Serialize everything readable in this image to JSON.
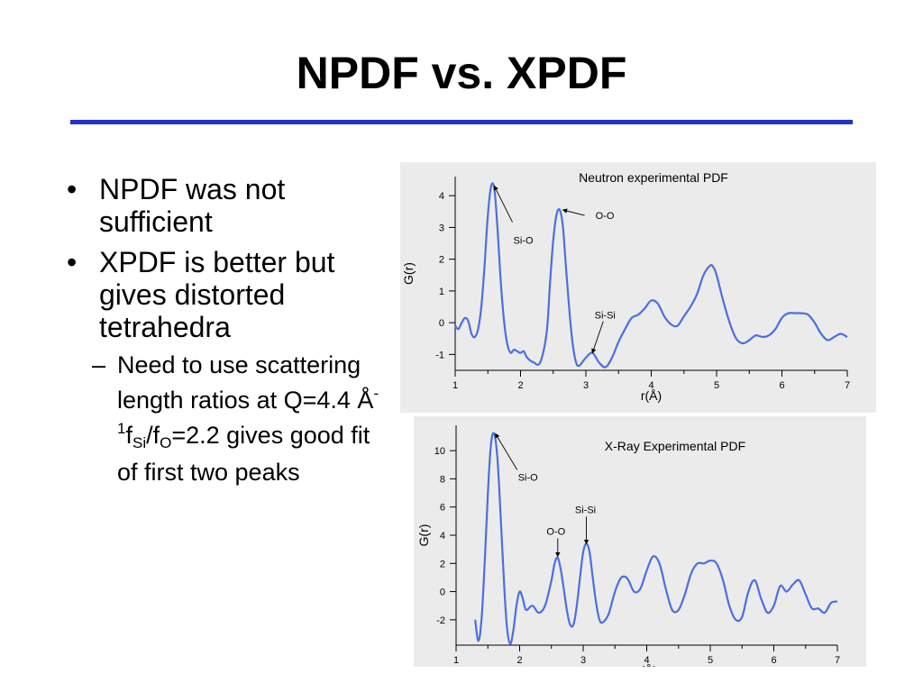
{
  "slide": {
    "title": "NPDF vs. XPDF",
    "bullets": [
      {
        "text": "NPDF was not sufficient"
      },
      {
        "text": "XPDF is better but gives distorted tetrahedra"
      }
    ],
    "sub_bullet": {
      "part1": "Need to use scattering length ratios at Q=4.4 Å",
      "sup_minus": "-",
      "sup_one": "1",
      "f1": "f",
      "sub_si": "Si",
      "slash_f": "/f",
      "sub_o": "O",
      "part2": "=2.2 gives good fit of first two peaks"
    }
  },
  "accent_color": "#2233cc",
  "chart_data": [
    {
      "type": "line",
      "title": "Neutron experimental PDF",
      "xlabel": "r(Å)",
      "ylabel": "G(r)",
      "xlim": [
        1,
        7
      ],
      "ylim": [
        -1.5,
        4.6
      ],
      "xticks": [
        1,
        2,
        3,
        4,
        5,
        6,
        7
      ],
      "yticks": [
        -1,
        0,
        1,
        2,
        3,
        4
      ],
      "color": "#4a6fe0",
      "grid": false,
      "series": [
        {
          "x": [
            1.0,
            1.05,
            1.1,
            1.15,
            1.2,
            1.25,
            1.3,
            1.35,
            1.4,
            1.45,
            1.5,
            1.55,
            1.6,
            1.65,
            1.7,
            1.75,
            1.8,
            1.85,
            1.9,
            1.95,
            2.0,
            2.05,
            2.1,
            2.2,
            2.3,
            2.4,
            2.45,
            2.5,
            2.55,
            2.6,
            2.65,
            2.7,
            2.75,
            2.8,
            2.85,
            2.9,
            3.0,
            3.1,
            3.2,
            3.3,
            3.4,
            3.5,
            3.6,
            3.7,
            3.8,
            3.9,
            4.0,
            4.1,
            4.2,
            4.3,
            4.4,
            4.5,
            4.6,
            4.7,
            4.8,
            4.9,
            4.95,
            5.0,
            5.1,
            5.2,
            5.3,
            5.4,
            5.5,
            5.6,
            5.7,
            5.8,
            5.9,
            6.0,
            6.1,
            6.2,
            6.3,
            6.4,
            6.5,
            6.6,
            6.7,
            6.8,
            6.9,
            7.0
          ],
          "y": [
            -0.1,
            -0.2,
            0.0,
            0.15,
            0.05,
            -0.35,
            -0.45,
            -0.2,
            0.5,
            1.8,
            3.4,
            4.3,
            4.2,
            2.9,
            1.2,
            0.0,
            -0.7,
            -0.95,
            -0.85,
            -0.9,
            -0.95,
            -0.9,
            -1.1,
            -1.25,
            -1.25,
            -0.3,
            1.2,
            2.6,
            3.4,
            3.55,
            3.0,
            1.6,
            0.3,
            -0.7,
            -1.25,
            -1.35,
            -1.1,
            -0.95,
            -1.25,
            -1.4,
            -1.1,
            -0.6,
            -0.2,
            0.15,
            0.25,
            0.45,
            0.7,
            0.6,
            0.2,
            -0.05,
            -0.1,
            0.2,
            0.5,
            0.9,
            1.5,
            1.8,
            1.75,
            1.5,
            0.7,
            0.0,
            -0.5,
            -0.65,
            -0.55,
            -0.4,
            -0.45,
            -0.4,
            -0.2,
            0.15,
            0.3,
            0.3,
            0.3,
            0.25,
            0.0,
            -0.35,
            -0.55,
            -0.45,
            -0.35,
            -0.45
          ]
        }
      ],
      "annotations": [
        {
          "text": "Si-O",
          "x": 1.6,
          "y": 4.3
        },
        {
          "text": "O-O",
          "x": 2.65,
          "y": 3.55
        },
        {
          "text": "Si-Si",
          "x": 3.1,
          "y": -0.95
        }
      ]
    },
    {
      "type": "line",
      "title": "X-Ray Experimental PDF",
      "xlabel": "r(Å)",
      "ylabel": "G(r)",
      "xlim": [
        1,
        7
      ],
      "ylim": [
        -3.8,
        11.8
      ],
      "xticks": [
        1,
        2,
        3,
        4,
        5,
        6,
        7
      ],
      "yticks": [
        -2,
        0,
        2,
        4,
        6,
        8,
        10
      ],
      "color": "#4a6fe0",
      "grid": false,
      "series": [
        {
          "x": [
            1.3,
            1.35,
            1.4,
            1.45,
            1.5,
            1.55,
            1.6,
            1.65,
            1.7,
            1.75,
            1.8,
            1.85,
            1.9,
            1.95,
            2.0,
            2.05,
            2.1,
            2.2,
            2.3,
            2.4,
            2.5,
            2.55,
            2.6,
            2.65,
            2.7,
            2.75,
            2.8,
            2.85,
            2.9,
            2.95,
            3.0,
            3.05,
            3.1,
            3.15,
            3.2,
            3.25,
            3.3,
            3.4,
            3.5,
            3.6,
            3.7,
            3.8,
            3.9,
            4.0,
            4.1,
            4.2,
            4.3,
            4.4,
            4.5,
            4.6,
            4.7,
            4.8,
            4.9,
            5.0,
            5.1,
            5.2,
            5.3,
            5.4,
            5.5,
            5.6,
            5.7,
            5.8,
            5.9,
            6.0,
            6.1,
            6.2,
            6.3,
            6.4,
            6.5,
            6.6,
            6.7,
            6.8,
            6.9,
            7.0
          ],
          "y": [
            -2.0,
            -3.5,
            -2.0,
            2.0,
            7.0,
            10.5,
            11.2,
            9.5,
            5.5,
            1.0,
            -2.5,
            -3.7,
            -2.8,
            -1.0,
            0.0,
            -0.5,
            -1.3,
            -1.0,
            -1.5,
            -1.0,
            0.8,
            2.0,
            2.4,
            1.5,
            0.0,
            -1.5,
            -2.4,
            -2.3,
            -1.0,
            1.0,
            2.8,
            3.4,
            2.8,
            1.0,
            -0.7,
            -1.9,
            -2.2,
            -1.6,
            0.0,
            1.0,
            0.9,
            0.0,
            0.2,
            1.5,
            2.5,
            2.0,
            0.2,
            -1.3,
            -1.3,
            -0.2,
            1.3,
            2.0,
            2.0,
            2.2,
            2.0,
            0.8,
            -1.0,
            -2.0,
            -1.8,
            0.0,
            0.8,
            -0.5,
            -1.5,
            -1.0,
            0.4,
            0.0,
            0.5,
            0.8,
            -0.2,
            -1.2,
            -1.2,
            -1.5,
            -0.8,
            -0.7
          ]
        }
      ],
      "annotations": [
        {
          "text": "Si-O",
          "x": 1.62,
          "y": 11.2
        },
        {
          "text": "O-O",
          "x": 2.6,
          "y": 2.5
        },
        {
          "text": "Si-Si",
          "x": 3.05,
          "y": 3.4
        }
      ]
    }
  ]
}
